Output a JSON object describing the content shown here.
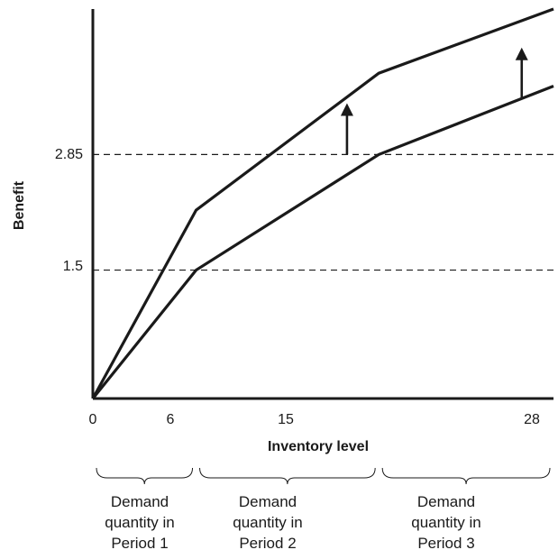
{
  "chart_data": {
    "type": "line",
    "title": "",
    "xlabel": "Inventory level",
    "ylabel": "Benefit",
    "xlim": [
      0,
      29
    ],
    "ylim": [
      0,
      4.55
    ],
    "x_ticks": [
      "0",
      "6",
      "15",
      "28"
    ],
    "y_ticks": [
      "2.85",
      "1.5"
    ],
    "reference_lines": [
      {
        "axis": "y",
        "value": 2.85,
        "style": "dashed"
      },
      {
        "axis": "y",
        "value": 1.5,
        "style": "dashed"
      }
    ],
    "series": [
      {
        "x": [
          0,
          6.5,
          18,
          29
        ],
        "y": [
          0,
          2.2,
          3.8,
          4.55
        ]
      },
      {
        "x": [
          0,
          6.5,
          18,
          29
        ],
        "y": [
          0,
          1.5,
          2.85,
          3.65
        ]
      }
    ],
    "arrows": [
      {
        "x": 16,
        "from": 2.85,
        "to": 3.45
      },
      {
        "x": 27,
        "from": 3.5,
        "to": 4.1
      }
    ],
    "groups": [
      {
        "label_lines": [
          "Demand",
          "quantity in",
          "Period 1"
        ],
        "from": 0,
        "to": 6.5
      },
      {
        "label_lines": [
          "Demand",
          "quantity in",
          "Period 2"
        ],
        "from": 6.5,
        "to": 18
      },
      {
        "label_lines": [
          "Demand",
          "quantity in",
          "Period 3"
        ],
        "from": 18,
        "to": 29
      }
    ]
  }
}
